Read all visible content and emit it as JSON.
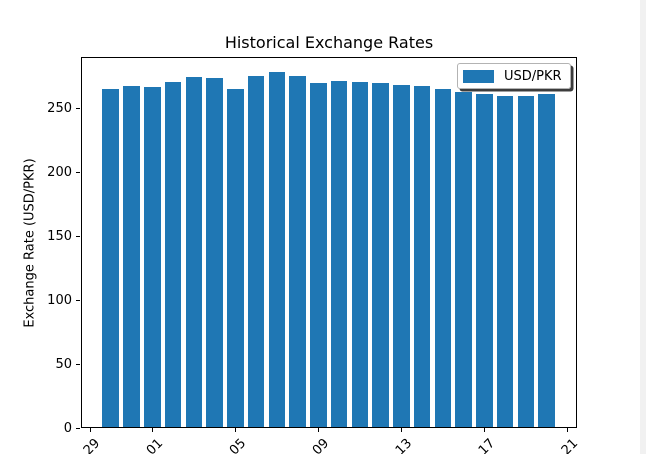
{
  "window": {
    "background_color": "#ffffff",
    "right_strip_color": "#f1f1f1"
  },
  "chart_data": {
    "type": "bar",
    "title": "Historical Exchange Rates",
    "xlabel": "",
    "ylabel": "Exchange Rate (USD/PKR)",
    "legend": {
      "label": "USD/PKR",
      "position": "upper right",
      "shadow": true
    },
    "bar_color": "#1f77b4",
    "axis_color": "#000000",
    "grid": false,
    "ylim": [
      0,
      290.5
    ],
    "yticks": [
      0,
      50,
      100,
      150,
      200,
      250
    ],
    "n_positions": 24,
    "xticks": [
      {
        "pos": 0,
        "label": "29"
      },
      {
        "pos": 3,
        "label": "01"
      },
      {
        "pos": 7,
        "label": "05"
      },
      {
        "pos": 11,
        "label": "09"
      },
      {
        "pos": 15,
        "label": "13"
      },
      {
        "pos": 19,
        "label": "17"
      },
      {
        "pos": 23,
        "label": "21"
      }
    ],
    "xtick_rotation_deg": 45,
    "values": [
      null,
      265.1,
      267.5,
      267.0,
      271.2,
      274.8,
      274.1,
      265.4,
      275.6,
      278.4,
      275.3,
      269.9,
      271.4,
      270.6,
      269.9,
      268.8,
      267.8,
      265.4,
      263.1,
      261.2,
      259.7,
      259.9,
      261.8,
      null
    ]
  }
}
